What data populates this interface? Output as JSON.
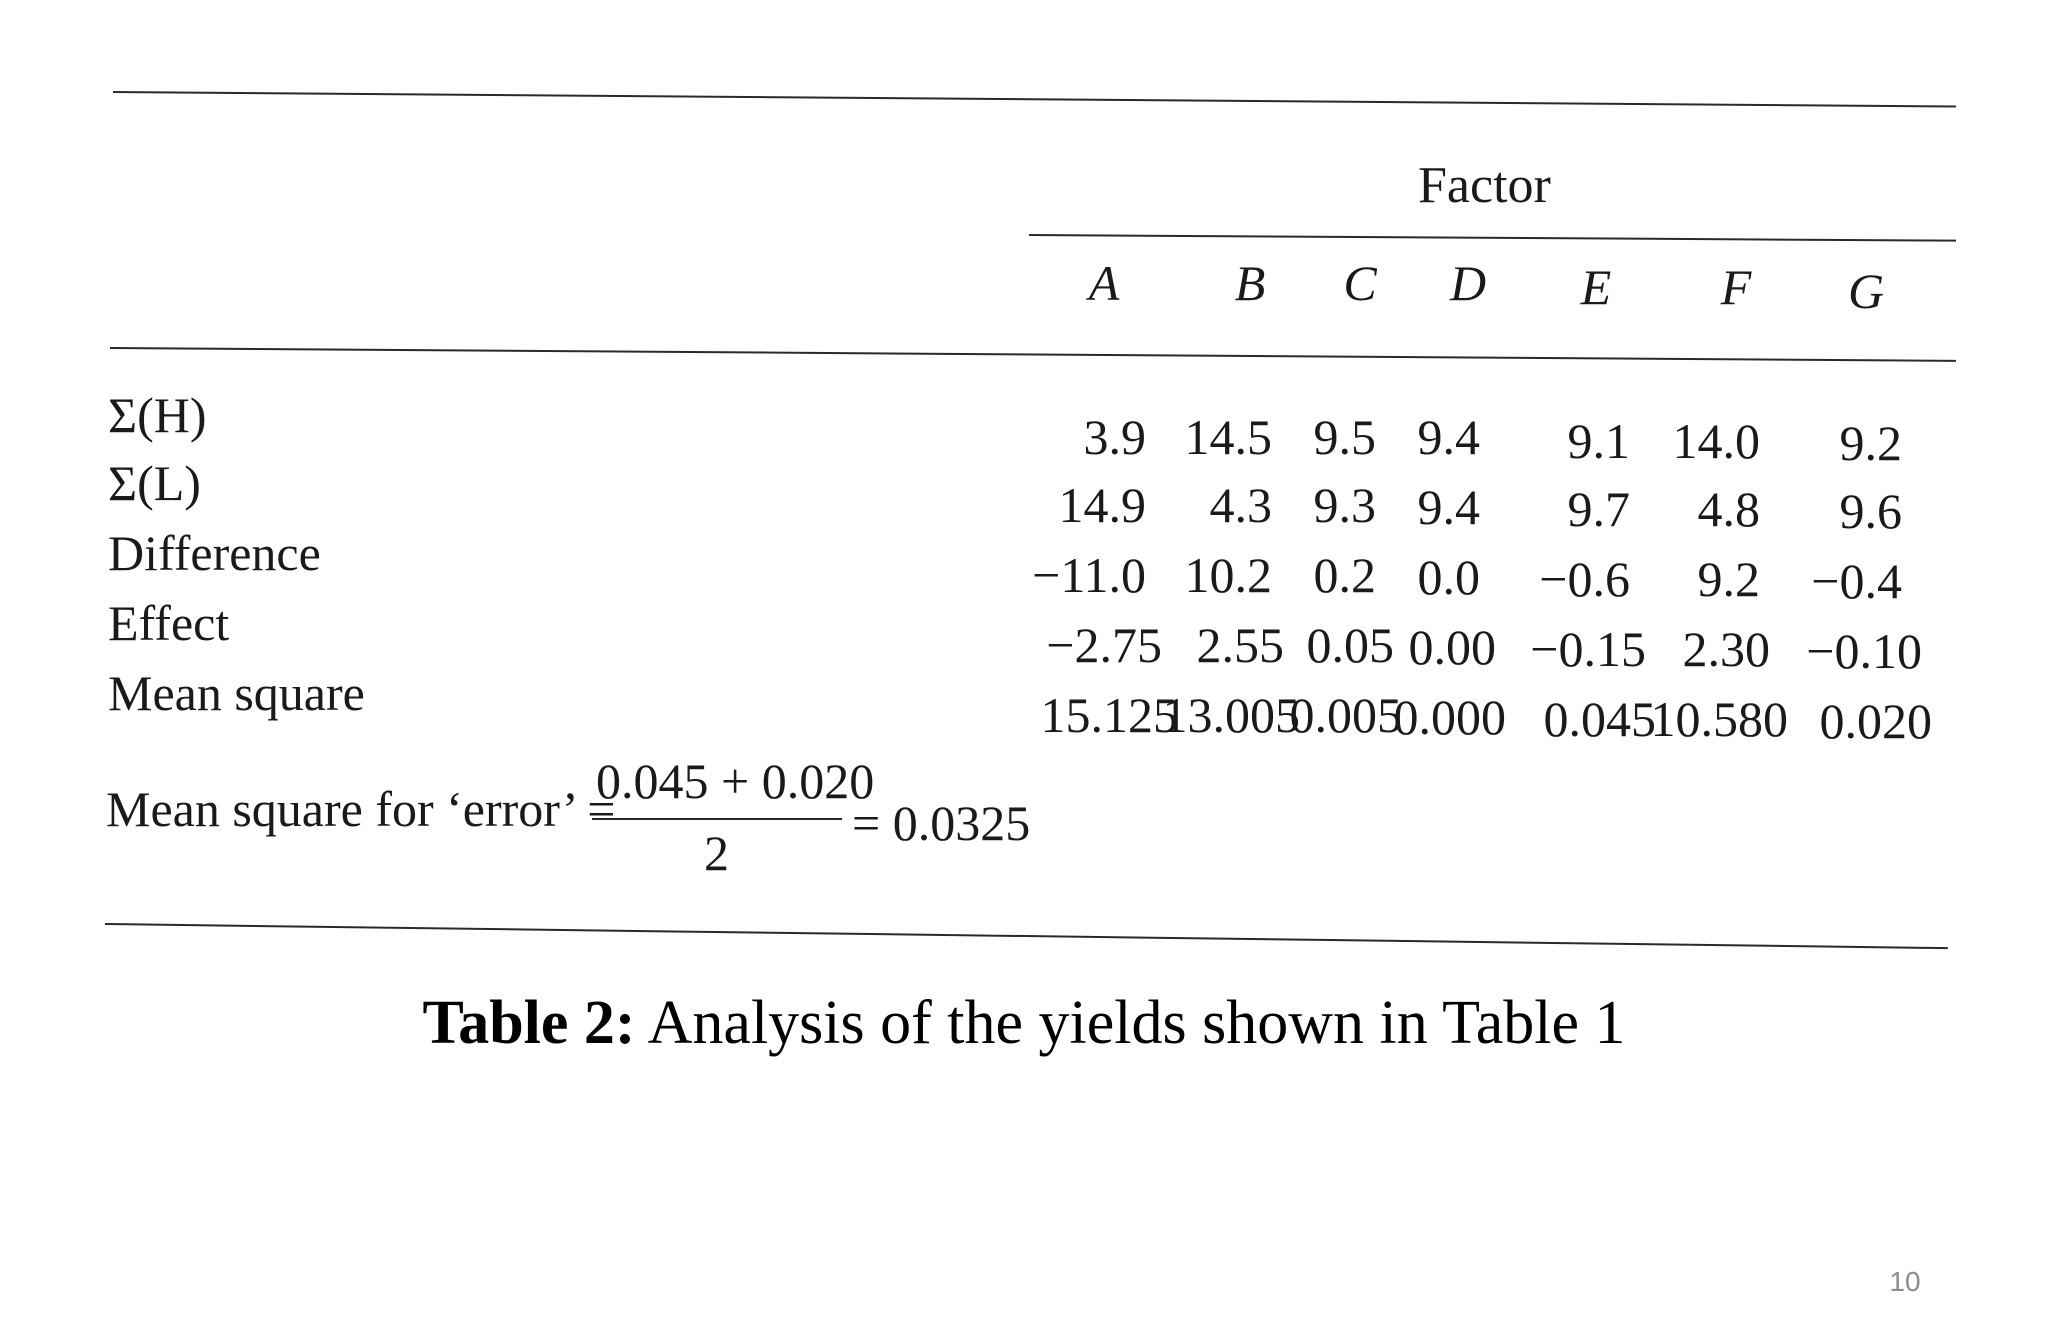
{
  "table": {
    "factor_heading": "Factor",
    "factors": [
      "A",
      "B",
      "C",
      "D",
      "E",
      "F",
      "G"
    ],
    "rows": [
      {
        "label": "Σ(H)",
        "values": [
          "3.9",
          "14.5",
          "9.5",
          "9.4",
          "9.1",
          "14.0",
          "9.2"
        ]
      },
      {
        "label": "Σ(L)",
        "values": [
          "14.9",
          "4.3",
          "9.3",
          "9.4",
          "9.7",
          "4.8",
          "9.6"
        ]
      },
      {
        "label": "Difference",
        "values": [
          "−11.0",
          "10.2",
          "0.2",
          "0.0",
          "−0.6",
          "9.2",
          "−0.4"
        ]
      },
      {
        "label": "Effect",
        "values": [
          "−2.75",
          "2.55",
          "0.05",
          "0.00",
          "−0.15",
          "2.30",
          "−0.10"
        ]
      },
      {
        "label": "Mean square",
        "values": [
          "15.125",
          "13.005",
          "0.005",
          "0.000",
          "0.045",
          "10.580",
          "0.020"
        ]
      }
    ],
    "error_formula": {
      "label": "Mean square for ‘error’ =",
      "numerator": "0.045 + 0.020",
      "denominator": "2",
      "result": "= 0.0325"
    }
  },
  "caption": {
    "prefix": "Table 2:",
    "text": " Analysis of the yields shown in Table 1"
  },
  "page_number": "10"
}
